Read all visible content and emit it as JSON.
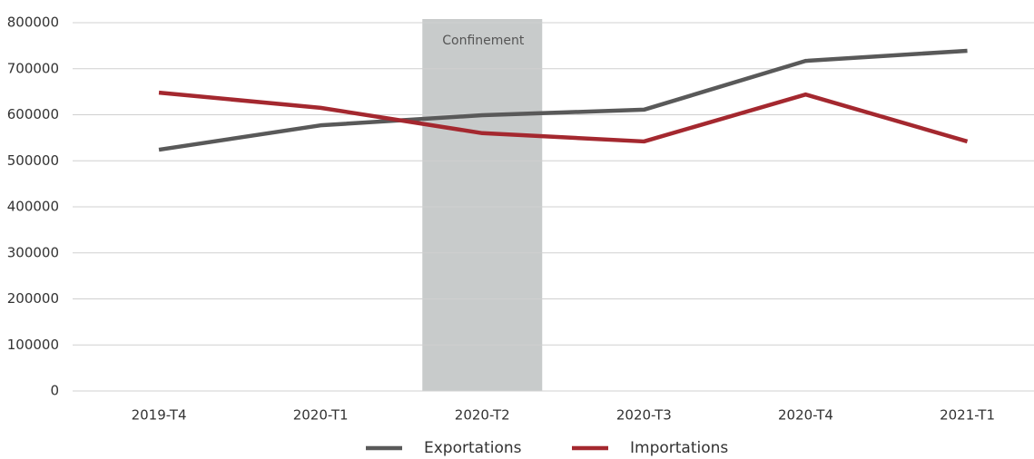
{
  "chart_data": {
    "type": "line",
    "categories": [
      "2019-T4",
      "2020-T1",
      "2020-T2",
      "2020-T3",
      "2020-T4",
      "2021-T1"
    ],
    "series": [
      {
        "name": "Exportations",
        "color": "#595959",
        "values": [
          524000,
          577000,
          599000,
          611000,
          717000,
          739000
        ]
      },
      {
        "name": "Importations",
        "color": "#a4282f",
        "values": [
          648000,
          615000,
          560000,
          542000,
          644000,
          542000
        ]
      }
    ],
    "ylim": [
      0,
      800000
    ],
    "yticks": [
      0,
      100000,
      200000,
      300000,
      400000,
      500000,
      600000,
      700000,
      800000
    ],
    "grid": true,
    "legend": "bottom",
    "annotations": [
      {
        "text": "Confinement",
        "x": "2020-T2",
        "color": "#c8cbcb"
      }
    ]
  }
}
